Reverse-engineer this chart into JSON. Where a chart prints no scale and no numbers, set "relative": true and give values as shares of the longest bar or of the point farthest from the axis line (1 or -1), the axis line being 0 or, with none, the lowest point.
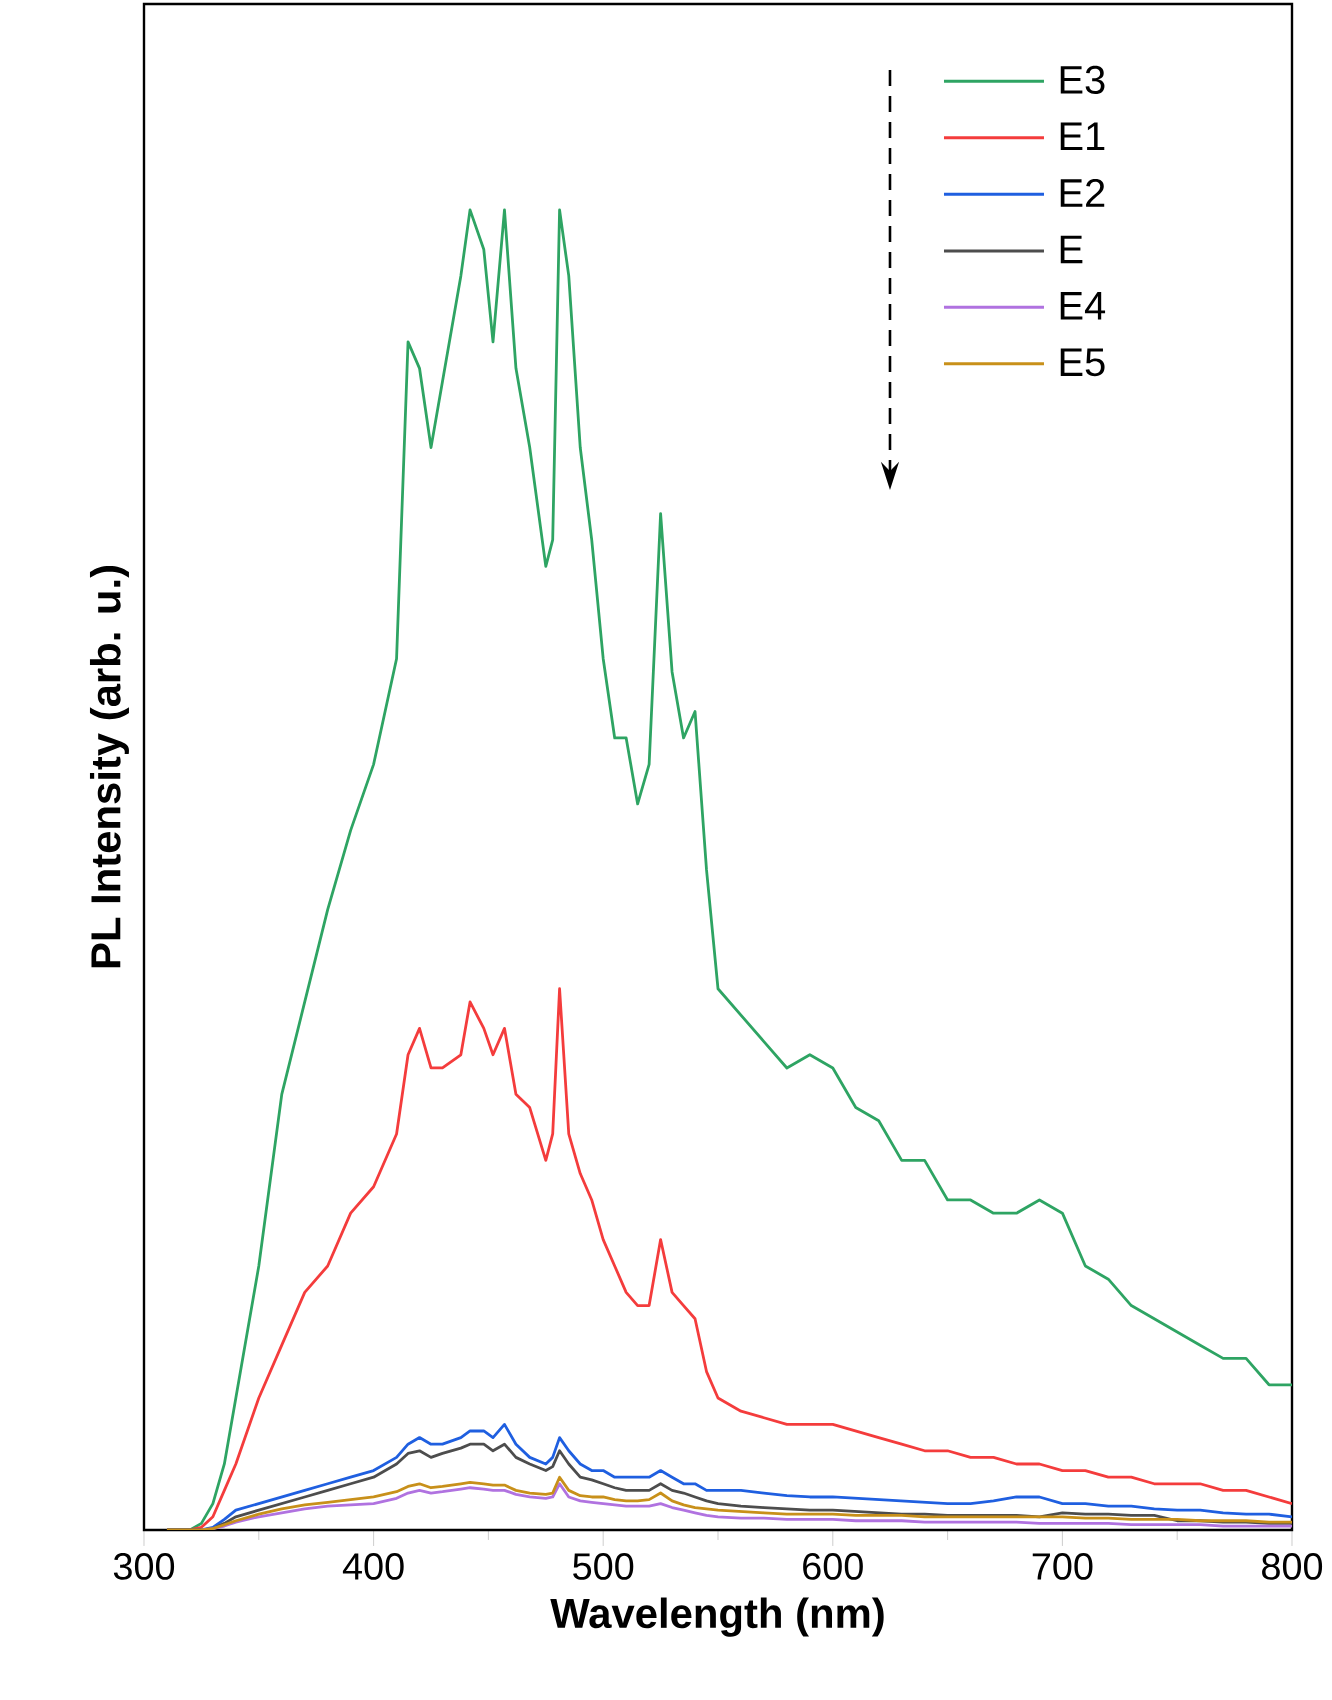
{
  "chart_data": {
    "type": "line",
    "xlabel": "Wavelength (nm)",
    "ylabel": "PL Intensity (arb. u.)",
    "relative": true,
    "x": [
      310,
      320,
      325,
      330,
      335,
      340,
      350,
      360,
      370,
      380,
      390,
      400,
      410,
      415,
      420,
      425,
      430,
      438,
      442,
      448,
      452,
      457,
      462,
      468,
      475,
      478,
      481,
      485,
      490,
      495,
      500,
      505,
      510,
      515,
      520,
      525,
      530,
      535,
      540,
      545,
      550,
      560,
      570,
      580,
      590,
      600,
      610,
      620,
      630,
      640,
      650,
      660,
      670,
      680,
      690,
      700,
      710,
      720,
      730,
      740,
      750,
      760,
      770,
      780,
      790,
      800
    ],
    "xlim": [
      300,
      800
    ],
    "xticks": [
      300,
      400,
      500,
      600,
      700,
      800
    ],
    "legend": "top right",
    "line_style": "solid",
    "marker": "none",
    "series": [
      {
        "name": "E3",
        "color": "#2ea463",
        "values": [
          0,
          0,
          0.005,
          0.02,
          0.05,
          0.1,
          0.2,
          0.33,
          0.4,
          0.47,
          0.53,
          0.58,
          0.66,
          0.9,
          0.88,
          0.82,
          0.87,
          0.95,
          1.0,
          0.97,
          0.9,
          1.0,
          0.88,
          0.82,
          0.73,
          0.75,
          1.0,
          0.95,
          0.82,
          0.75,
          0.66,
          0.6,
          0.6,
          0.55,
          0.58,
          0.77,
          0.65,
          0.6,
          0.62,
          0.5,
          0.41,
          0.39,
          0.37,
          0.35,
          0.36,
          0.35,
          0.32,
          0.31,
          0.28,
          0.28,
          0.25,
          0.25,
          0.24,
          0.24,
          0.25,
          0.24,
          0.2,
          0.19,
          0.17,
          0.16,
          0.15,
          0.14,
          0.13,
          0.13,
          0.11,
          0.11
        ]
      },
      {
        "name": "E1",
        "color": "#f43c3c",
        "values": [
          0,
          0,
          0.002,
          0.01,
          0.03,
          0.05,
          0.1,
          0.14,
          0.18,
          0.2,
          0.24,
          0.26,
          0.3,
          0.36,
          0.38,
          0.35,
          0.35,
          0.36,
          0.4,
          0.38,
          0.36,
          0.38,
          0.33,
          0.32,
          0.28,
          0.3,
          0.41,
          0.3,
          0.27,
          0.25,
          0.22,
          0.2,
          0.18,
          0.17,
          0.17,
          0.22,
          0.18,
          0.17,
          0.16,
          0.12,
          0.1,
          0.09,
          0.085,
          0.08,
          0.08,
          0.08,
          0.075,
          0.07,
          0.065,
          0.06,
          0.06,
          0.055,
          0.055,
          0.05,
          0.05,
          0.045,
          0.045,
          0.04,
          0.04,
          0.035,
          0.035,
          0.035,
          0.03,
          0.03,
          0.025,
          0.02
        ]
      },
      {
        "name": "E2",
        "color": "#1f5fe0",
        "values": [
          0,
          0,
          0,
          0.002,
          0.008,
          0.015,
          0.02,
          0.025,
          0.03,
          0.035,
          0.04,
          0.045,
          0.055,
          0.065,
          0.07,
          0.065,
          0.065,
          0.07,
          0.075,
          0.075,
          0.07,
          0.08,
          0.065,
          0.055,
          0.05,
          0.055,
          0.07,
          0.06,
          0.05,
          0.045,
          0.045,
          0.04,
          0.04,
          0.04,
          0.04,
          0.045,
          0.04,
          0.035,
          0.035,
          0.03,
          0.03,
          0.03,
          0.028,
          0.026,
          0.025,
          0.025,
          0.024,
          0.023,
          0.022,
          0.021,
          0.02,
          0.02,
          0.022,
          0.025,
          0.025,
          0.02,
          0.02,
          0.018,
          0.018,
          0.016,
          0.015,
          0.015,
          0.013,
          0.012,
          0.012,
          0.01
        ]
      },
      {
        "name": "E",
        "color": "#4d4d4d",
        "values": [
          0,
          0,
          0,
          0.001,
          0.005,
          0.01,
          0.015,
          0.02,
          0.025,
          0.03,
          0.035,
          0.04,
          0.05,
          0.058,
          0.06,
          0.055,
          0.058,
          0.062,
          0.065,
          0.065,
          0.06,
          0.065,
          0.055,
          0.05,
          0.045,
          0.048,
          0.06,
          0.05,
          0.04,
          0.038,
          0.035,
          0.032,
          0.03,
          0.03,
          0.03,
          0.035,
          0.03,
          0.028,
          0.025,
          0.022,
          0.02,
          0.018,
          0.017,
          0.016,
          0.015,
          0.015,
          0.014,
          0.013,
          0.012,
          0.012,
          0.011,
          0.011,
          0.011,
          0.011,
          0.01,
          0.013,
          0.012,
          0.012,
          0.011,
          0.011,
          0.007,
          0.007,
          0.006,
          0.006,
          0.005,
          0.005
        ]
      },
      {
        "name": "E4",
        "color": "#b072e0",
        "values": [
          null,
          null,
          0,
          0.001,
          0.003,
          0.006,
          0.01,
          0.013,
          0.016,
          0.018,
          0.019,
          0.02,
          0.024,
          0.028,
          0.03,
          0.028,
          0.029,
          0.031,
          0.032,
          0.031,
          0.03,
          0.03,
          0.027,
          0.025,
          0.024,
          0.025,
          0.035,
          0.025,
          0.022,
          0.021,
          0.02,
          0.019,
          0.018,
          0.018,
          0.018,
          0.02,
          0.017,
          0.015,
          0.013,
          0.011,
          0.01,
          0.009,
          0.009,
          0.008,
          0.008,
          0.008,
          0.007,
          0.007,
          0.007,
          0.006,
          0.006,
          0.006,
          0.006,
          0.006,
          0.005,
          0.005,
          0.005,
          0.005,
          0.004,
          0.004,
          0.004,
          0.004,
          0.003,
          0.003,
          0.003,
          0.003
        ]
      },
      {
        "name": "E5",
        "color": "#c8901a",
        "values": [
          0,
          0,
          0,
          0.001,
          0.004,
          0.007,
          0.012,
          0.016,
          0.019,
          0.021,
          0.023,
          0.025,
          0.029,
          0.033,
          0.035,
          0.032,
          0.033,
          0.035,
          0.036,
          0.035,
          0.034,
          0.034,
          0.03,
          0.028,
          0.027,
          0.028,
          0.04,
          0.03,
          0.026,
          0.025,
          0.025,
          0.023,
          0.022,
          0.022,
          0.023,
          0.028,
          0.022,
          0.019,
          0.017,
          0.016,
          0.015,
          0.014,
          0.013,
          0.012,
          0.012,
          0.012,
          0.011,
          0.011,
          0.011,
          0.01,
          0.01,
          0.01,
          0.01,
          0.01,
          0.01,
          0.01,
          0.009,
          0.009,
          0.008,
          0.008,
          0.008,
          0.007,
          0.007,
          0.007,
          0.006,
          0.006
        ]
      }
    ]
  }
}
